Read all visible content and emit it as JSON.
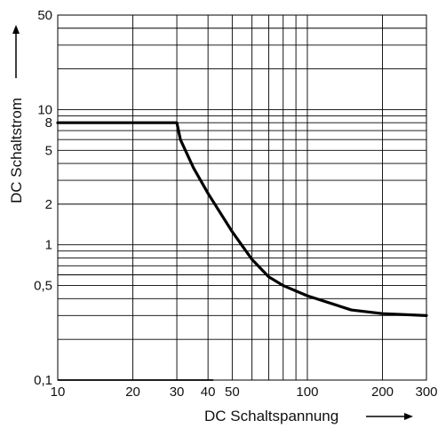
{
  "chart_data": {
    "type": "line",
    "xlabel": "DC Schaltspannung",
    "ylabel": "DC Schaltstrom",
    "xscale": "log",
    "yscale": "log",
    "xlim": [
      10,
      300
    ],
    "ylim": [
      0.1,
      50
    ],
    "x_ticks": [
      10,
      20,
      30,
      40,
      50,
      100,
      200,
      300
    ],
    "x_tick_labels": [
      "10",
      "20",
      "30",
      "40",
      "50",
      "100",
      "200",
      "300"
    ],
    "y_ticks": [
      0.1,
      0.5,
      1,
      2,
      5,
      8,
      10,
      50
    ],
    "y_tick_labels": [
      "0,1",
      "0,5",
      "1",
      "2",
      "5",
      "8",
      "10",
      "50"
    ],
    "grid": true,
    "legend": "none",
    "series": [
      {
        "x": [
          10,
          30,
          31,
          35,
          40,
          50,
          60,
          70,
          80,
          100,
          150,
          200,
          300
        ],
        "y": [
          8,
          8,
          6,
          3.7,
          2.4,
          1.25,
          0.78,
          0.58,
          0.5,
          0.42,
          0.33,
          0.31,
          0.3
        ],
        "color": "#000000"
      }
    ]
  }
}
